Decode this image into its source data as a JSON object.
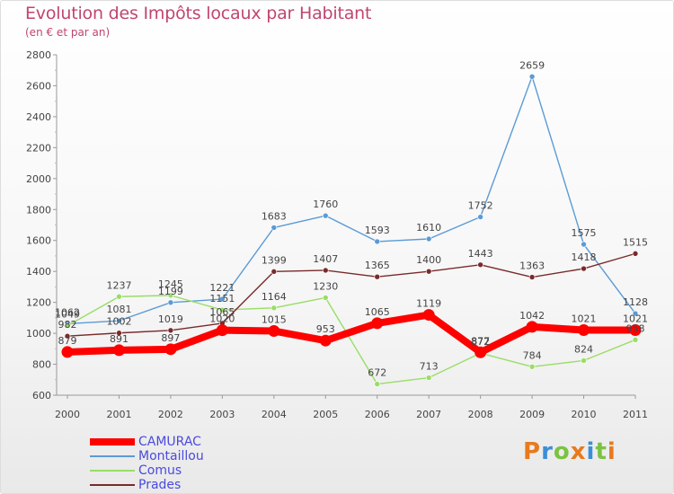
{
  "title": "Evolution des Impôts locaux par Habitant",
  "subtitle": "(en € et par an)",
  "logo_text": "Proxiti",
  "colors": {
    "title": "#c0466c",
    "legend_text": "#4a4adf",
    "axis_text": "#444444",
    "logo": [
      "#e87a1d",
      "#3b8fd6",
      "#7cc242",
      "#e87a1d",
      "#3b8fd6",
      "#7cc242",
      "#e87a1d"
    ]
  },
  "chart_data": {
    "type": "line",
    "title": "Evolution des Impôts locaux par Habitant",
    "subtitle": "(en € et par an)",
    "xlabel": "",
    "ylabel": "",
    "x": [
      "2000",
      "2001",
      "2002",
      "2003",
      "2004",
      "2005",
      "2006",
      "2007",
      "2008",
      "2009",
      "2010",
      "2011"
    ],
    "ylim": [
      600,
      2800
    ],
    "yticks": [
      600,
      800,
      1000,
      1200,
      1400,
      1600,
      1800,
      2000,
      2200,
      2400,
      2600,
      2800
    ],
    "grid": false,
    "legend_position": "bottom-left",
    "series": [
      {
        "name": "CAMURAC",
        "color": "#ff0000",
        "emphasis": true,
        "values": [
          879,
          891,
          897,
          1020,
          1015,
          953,
          1065,
          1119,
          877,
          1042,
          1021,
          1021
        ],
        "labels": [
          "879",
          "891",
          "897",
          "1020",
          "1015",
          "953",
          "1065",
          "1119",
          "877",
          "1042",
          "1021",
          "1021"
        ]
      },
      {
        "name": "Montaillou",
        "color": "#5b9bd5",
        "emphasis": false,
        "values": [
          1062,
          1081,
          1199,
          1221,
          1683,
          1760,
          1593,
          1610,
          1752,
          2659,
          1575,
          1128
        ],
        "labels": [
          "1062",
          "1081",
          "1199",
          "1221",
          "1683",
          "1760",
          "1593",
          "1610",
          "1752",
          "2659",
          "1575",
          "1128"
        ]
      },
      {
        "name": "Comus",
        "color": "#99dd66",
        "emphasis": false,
        "values": [
          1049,
          1237,
          1245,
          1151,
          1164,
          1230,
          672,
          713,
          872,
          784,
          824,
          958
        ],
        "labels": [
          "1049",
          "1237",
          "1245",
          "1151",
          "1164",
          "1230",
          "672",
          "713",
          "872",
          "784",
          "824",
          "958"
        ]
      },
      {
        "name": "Prades",
        "color": "#7a2a2a",
        "emphasis": false,
        "values": [
          982,
          1002,
          1019,
          1065,
          1399,
          1407,
          1365,
          1400,
          1443,
          1363,
          1418,
          1515
        ],
        "labels": [
          "982",
          "1002",
          "1019",
          "1065",
          "1399",
          "1407",
          "1365",
          "1400",
          "1443",
          "1363",
          "1418",
          "1515"
        ]
      }
    ]
  }
}
